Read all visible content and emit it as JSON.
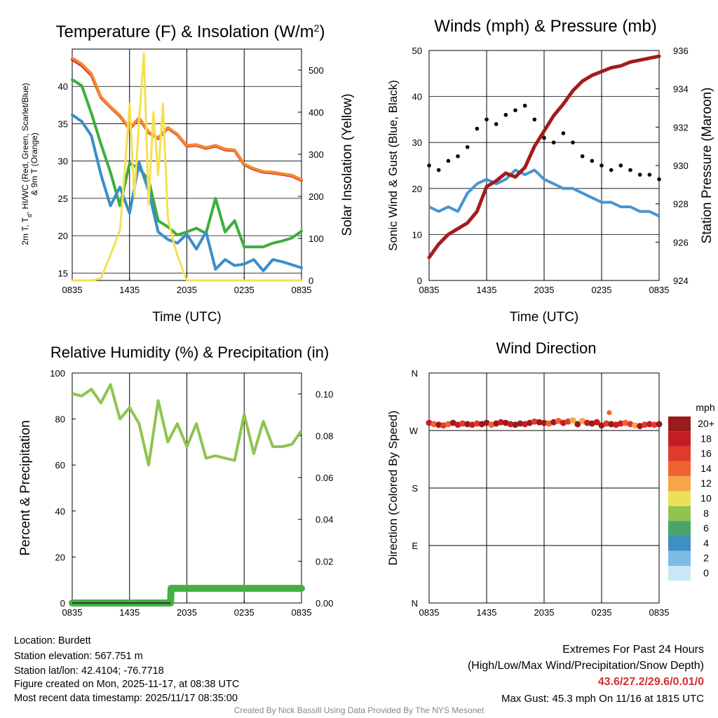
{
  "chart_data": [
    {
      "type": "line",
      "title": "Temperature (F) & Insolation (W/m²)",
      "xlabel": "Time (UTC)",
      "ylabel": "2m T, Td, HI/WC (Red, Green, Scarlet/Blue) & 9m T (Orange)",
      "y2label": "Solar Insolation (Yellow)",
      "x_ticks": [
        "0835",
        "1435",
        "2035",
        "0235",
        "0835"
      ],
      "ylim": [
        14,
        45
      ],
      "y_ticks": [
        15,
        20,
        25,
        30,
        35,
        40
      ],
      "y2lim": [
        0,
        550
      ],
      "y2_ticks": [
        0,
        100,
        200,
        300,
        400,
        500
      ],
      "series": [
        {
          "name": "2m Temperature",
          "axis": "left",
          "color": "#d62020",
          "x": [
            0,
            1,
            2,
            3,
            4,
            5,
            6,
            7,
            8,
            9,
            10,
            11,
            12,
            13,
            14,
            15,
            16,
            17,
            18,
            19,
            20,
            21,
            22,
            23,
            24
          ],
          "values": [
            43.6,
            42.8,
            41.5,
            38.5,
            37.2,
            36.0,
            34.3,
            35.7,
            33.8,
            33.0,
            34.4,
            33.5,
            32.0,
            32.1,
            31.7,
            32.0,
            31.5,
            31.4,
            29.5,
            28.9,
            28.5,
            28.4,
            28.2,
            28.0,
            27.4
          ]
        },
        {
          "name": "9m Temperature",
          "axis": "left",
          "color": "#f08a30",
          "x": [
            0,
            1,
            2,
            3,
            4,
            5,
            6,
            7,
            8,
            9,
            10,
            11,
            12,
            13,
            14,
            15,
            16,
            17,
            18,
            19,
            20,
            21,
            22,
            23,
            24
          ],
          "values": [
            43.8,
            43.0,
            41.7,
            38.6,
            37.3,
            36.1,
            34.4,
            35.8,
            33.9,
            33.1,
            34.5,
            33.6,
            32.1,
            32.2,
            31.8,
            32.1,
            31.6,
            31.5,
            29.6,
            29.0,
            28.6,
            28.5,
            28.3,
            28.1,
            27.5
          ]
        },
        {
          "name": "Dewpoint",
          "axis": "left",
          "color": "#3cae3c",
          "x": [
            0,
            1,
            2,
            3,
            4,
            5,
            6,
            7,
            8,
            9,
            10,
            11,
            12,
            13,
            14,
            15,
            16,
            17,
            18,
            19,
            20,
            21,
            22,
            23,
            24
          ],
          "values": [
            40.9,
            40.1,
            36.4,
            32.3,
            28.5,
            24.0,
            29.7,
            29.0,
            27.5,
            22.0,
            21.2,
            20.1,
            20.5,
            21.0,
            20.3,
            25.0,
            20.5,
            22.0,
            18.5,
            18.5,
            18.5,
            19.0,
            19.3,
            19.7,
            20.6
          ]
        },
        {
          "name": "Wind Chill",
          "axis": "left",
          "color": "#3a8ec8",
          "x": [
            0,
            1,
            2,
            3,
            4,
            5,
            6,
            7,
            8,
            9,
            10,
            11,
            12,
            13,
            14,
            15,
            16,
            17,
            18,
            19,
            20,
            21,
            22,
            23,
            24
          ],
          "values": [
            36.2,
            35.3,
            33.4,
            28.2,
            24.0,
            26.5,
            23.0,
            29.8,
            26.0,
            20.5,
            19.5,
            19.0,
            20.2,
            18.2,
            20.5,
            15.5,
            16.8,
            16.0,
            16.2,
            16.8,
            15.3,
            16.8,
            16.5,
            16.1,
            15.7
          ]
        },
        {
          "name": "Solar Insolation",
          "axis": "right",
          "color": "#f5e050",
          "x": [
            0,
            1,
            2,
            3,
            4,
            5,
            5.5,
            6,
            6.5,
            7,
            7.5,
            8,
            8.5,
            9,
            9.5,
            10,
            10.5,
            11,
            12,
            24
          ],
          "values": [
            0,
            0,
            0,
            5,
            60,
            120,
            260,
            420,
            200,
            380,
            540,
            180,
            400,
            250,
            420,
            150,
            100,
            60,
            0,
            0
          ]
        }
      ]
    },
    {
      "type": "line",
      "title": "Winds (mph) & Pressure (mb)",
      "xlabel": "Time (UTC)",
      "ylabel": "Sonic Wind & Gust (Blue, Black)",
      "y2label": "Station Pressure (Maroon)",
      "x_ticks": [
        "0835",
        "1435",
        "2035",
        "0235",
        "0835"
      ],
      "ylim": [
        0,
        50
      ],
      "y_ticks": [
        0,
        10,
        20,
        30,
        40,
        50
      ],
      "y2lim": [
        924,
        936
      ],
      "y2_ticks": [
        924,
        926,
        928,
        930,
        932,
        934,
        936
      ],
      "series": [
        {
          "name": "Sonic Wind",
          "axis": "left",
          "color": "#4a94d0",
          "x": [
            0,
            1,
            2,
            3,
            4,
            5,
            6,
            7,
            8,
            9,
            10,
            11,
            12,
            13,
            14,
            15,
            16,
            17,
            18,
            19,
            20,
            21,
            22,
            23,
            24
          ],
          "values": [
            16,
            15,
            16,
            15,
            19,
            21,
            22,
            21,
            22,
            24,
            23,
            24,
            22,
            21,
            20,
            20,
            19,
            18,
            17,
            17,
            16,
            16,
            15,
            15,
            14
          ]
        },
        {
          "name": "Station Pressure",
          "axis": "right",
          "color": "#a31c1c",
          "x": [
            0,
            1,
            2,
            3,
            4,
            5,
            6,
            7,
            8,
            9,
            10,
            11,
            12,
            13,
            14,
            15,
            16,
            17,
            18,
            19,
            20,
            21,
            22,
            23,
            24
          ],
          "values": [
            925.2,
            925.9,
            926.4,
            926.7,
            927.0,
            927.6,
            928.9,
            929.2,
            929.6,
            929.4,
            929.9,
            931.0,
            931.8,
            932.6,
            933.2,
            933.9,
            934.4,
            934.7,
            934.9,
            935.1,
            935.2,
            935.4,
            935.5,
            935.6,
            935.7
          ]
        }
      ],
      "gusts": {
        "name": "Sonic Gust",
        "color": "#000000",
        "x": [
          0,
          1,
          2,
          3,
          4,
          5,
          6,
          7,
          8,
          9,
          10,
          11,
          12,
          13,
          14,
          15,
          16,
          17,
          18,
          19,
          20,
          21,
          22,
          23,
          24
        ],
        "values": [
          25,
          24,
          26,
          27,
          29,
          33,
          35,
          34,
          36,
          37,
          38,
          35,
          31,
          30,
          32,
          30,
          27,
          26,
          25,
          24,
          25,
          24,
          23,
          23,
          22
        ]
      }
    },
    {
      "type": "line",
      "title": "Relative Humidity (%) & Precipitation (in)",
      "xlabel": "",
      "ylabel": "Percent & Precipitation",
      "x_ticks": [
        "0835",
        "1435",
        "2035",
        "0235",
        "0835"
      ],
      "ylim": [
        0,
        100
      ],
      "y_ticks": [
        0,
        20,
        40,
        60,
        80,
        100
      ],
      "y2lim": [
        0,
        0.11
      ],
      "y2_ticks": [
        0.0,
        0.02,
        0.04,
        0.06,
        0.08,
        0.1
      ],
      "series": [
        {
          "name": "Relative Humidity",
          "axis": "left",
          "color": "#8fc450",
          "x": [
            0,
            1,
            2,
            3,
            4,
            5,
            6,
            7,
            8,
            9,
            10,
            11,
            12,
            13,
            14,
            15,
            16,
            17,
            18,
            19,
            20,
            21,
            22,
            23,
            24
          ],
          "values": [
            91,
            90,
            93,
            87,
            95,
            80,
            85,
            78,
            60,
            88,
            70,
            78,
            68,
            78,
            63,
            64,
            63,
            62,
            82,
            65,
            79,
            68,
            68,
            69,
            75
          ]
        },
        {
          "name": "Precipitation",
          "axis": "right",
          "color": "#44b044",
          "x": [
            0,
            10.3,
            10.35,
            24
          ],
          "values": [
            0.0,
            0.0,
            0.007,
            0.007
          ]
        }
      ]
    },
    {
      "type": "scatter",
      "title": "Wind Direction",
      "ylabel": "Direction (Colored By Speed)",
      "x_ticks": [
        "0835",
        "1435",
        "2035",
        "0235",
        "0835"
      ],
      "y_ticks": [
        "N",
        "E",
        "S",
        "W",
        "N"
      ],
      "color_by": "speed",
      "x": [
        0,
        0.5,
        1,
        1.5,
        2,
        2.5,
        3,
        3.5,
        4,
        4.5,
        5,
        5.5,
        6,
        6.5,
        7,
        7.5,
        8,
        8.5,
        9,
        9.5,
        10,
        10.5,
        11,
        11.5,
        12,
        12.5,
        13,
        13.5,
        14,
        14.5,
        15,
        15.5,
        16,
        16.5,
        17,
        17.5,
        18,
        18.5,
        19,
        19.5,
        20,
        20.5,
        21,
        21.5,
        22,
        22.5,
        23,
        23.5,
        24
      ],
      "direction_deg": [
        282,
        280,
        279,
        278,
        280,
        282,
        279,
        281,
        280,
        279,
        281,
        280,
        282,
        279,
        281,
        283,
        282,
        280,
        279,
        281,
        280,
        282,
        284,
        283,
        282,
        281,
        283,
        285,
        282,
        284,
        286,
        280,
        285,
        282,
        281,
        283,
        278,
        281,
        280,
        279,
        281,
        282,
        280,
        278,
        277,
        279,
        280,
        279,
        280
      ],
      "speed_mph": [
        18,
        14,
        20,
        16,
        13,
        19,
        17,
        15,
        20,
        18,
        16,
        20,
        19,
        14,
        20,
        18,
        20,
        17,
        19,
        20,
        18,
        20,
        16,
        20,
        19,
        14,
        20,
        13,
        18,
        16,
        12,
        20,
        11,
        17,
        20,
        18,
        19,
        16,
        20,
        17,
        18,
        14,
        16,
        11,
        20,
        15,
        18,
        16,
        20
      ],
      "outlier": {
        "x": 18.8,
        "direction_deg": 298,
        "speed_mph": 13
      },
      "colorbar": {
        "title": "mph",
        "labels": [
          "20+",
          "18",
          "16",
          "14",
          "12",
          "10",
          "8",
          "6",
          "4",
          "2",
          "0"
        ],
        "colors": [
          "#9b1b1b",
          "#c41e24",
          "#df3a2a",
          "#f06330",
          "#f8a54a",
          "#ecdf5a",
          "#8fc44f",
          "#4aa56a",
          "#3c8ec4",
          "#7ebbe6",
          "#c8e8f8"
        ]
      }
    }
  ],
  "footer": {
    "location": "Location: Burdett",
    "elevation": "Station elevation: 567.751 m",
    "latlon": "Station lat/lon: 42.4104; -76.7718",
    "created": "Figure created on Mon, 2025-11-17, at 08:38 UTC",
    "recent": "Most recent data timestamp: 2025/11/17 08:35:00",
    "extremes_title": "Extremes For Past 24 Hours",
    "extremes_legend": "(High/Low/Max Wind/Precipitation/Snow Depth)",
    "extremes_values": "43.6/27.2/29.6/0.01/0",
    "max_gust": "Max Gust: 45.3 mph On 11/16 at 1815 UTC",
    "credit": "Created By Nick Bassill Using Data Provided By The NYS Mesonet"
  }
}
